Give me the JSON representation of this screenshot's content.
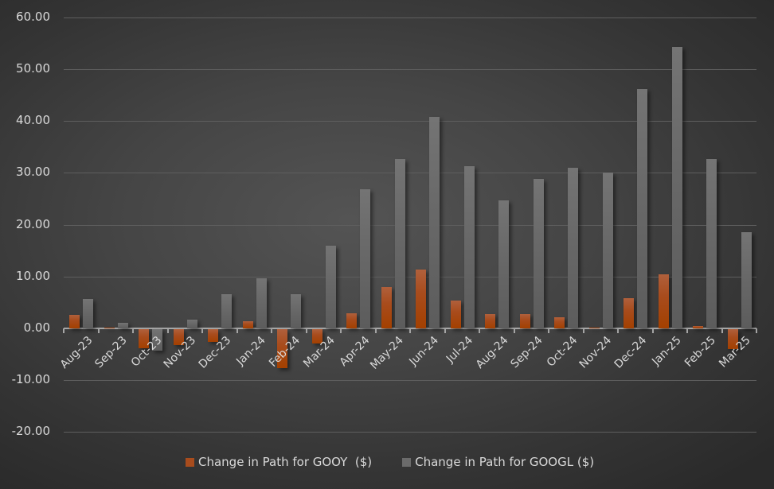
{
  "chart_data": {
    "type": "bar",
    "title": "",
    "xlabel": "",
    "ylabel": "",
    "ylim": [
      -20,
      60
    ],
    "yticks": [
      "60.00",
      "50.00",
      "40.00",
      "30.00",
      "20.00",
      "10.00",
      "0.00",
      "-10.00",
      "-20.00"
    ],
    "ytick_values": [
      60,
      50,
      40,
      30,
      20,
      10,
      0,
      -10,
      -20
    ],
    "grid": true,
    "legend_position": "bottom",
    "categories": [
      "Aug-23",
      "Sep-23",
      "Oct-23",
      "Nov-23",
      "Dec-23",
      "Jan-24",
      "Feb-24",
      "Mar-24",
      "Apr-24",
      "May-24",
      "Jun-24",
      "Jul-24",
      "Aug-24",
      "Sep-24",
      "Oct-24",
      "Nov-24",
      "Dec-24",
      "Jan-25",
      "Feb-25",
      "Mar-25"
    ],
    "series": [
      {
        "name": "Change in Path for GOOY  ($)",
        "color": "#a84c1d",
        "values": [
          2.6,
          0.1,
          -3.7,
          -3.1,
          -2.5,
          1.4,
          -7.5,
          -2.8,
          2.9,
          8.0,
          11.4,
          5.4,
          2.8,
          2.8,
          2.2,
          0.1,
          5.8,
          10.4,
          0.5,
          -3.8
        ]
      },
      {
        "name": "Change in Path for GOOGL ($)",
        "color": "#6b6b6b",
        "values": [
          5.7,
          1.0,
          -4.2,
          1.7,
          6.6,
          9.7,
          6.6,
          16.0,
          26.9,
          32.7,
          40.8,
          31.3,
          24.7,
          28.8,
          31.0,
          30.1,
          46.2,
          54.3,
          32.7,
          18.6
        ]
      }
    ]
  },
  "legend": {
    "items": [
      {
        "label": "Change in Path for GOOY  ($)",
        "color": "#a84c1d"
      },
      {
        "label": "Change in Path for GOOGL ($)",
        "color": "#6b6b6b"
      }
    ]
  }
}
